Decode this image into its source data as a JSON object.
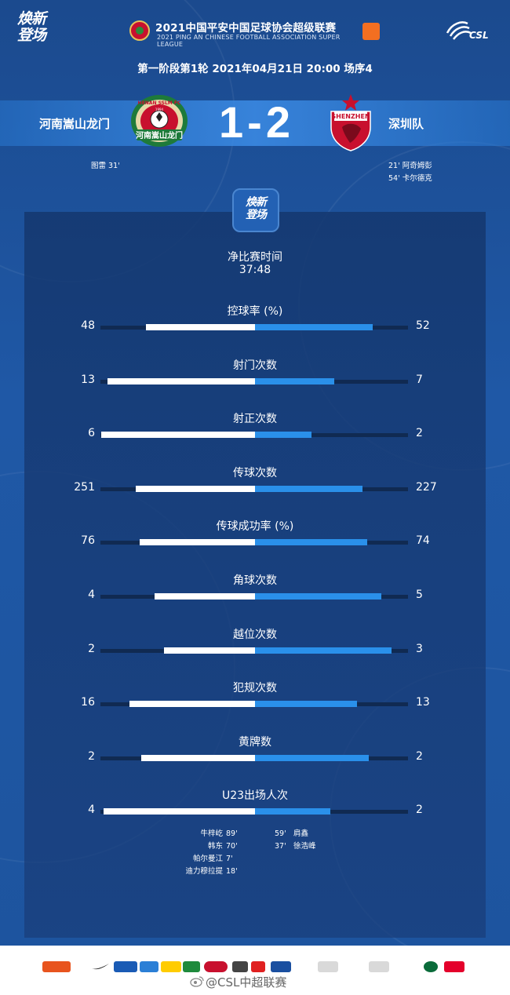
{
  "header": {
    "slogan": "焕新\n登场",
    "league_title": "2021中国平安中国足球协会超级联赛",
    "league_subtitle": "2021 PING AN CHINESE FOOTBALL ASSOCIATION SUPER LEAGUE",
    "csl_logo_text": "CSL",
    "match_info": "第一阶段第1轮  2021年04月21日 20:00 场序4"
  },
  "match": {
    "home_team": "河南嵩山龙门",
    "away_team": "深圳队",
    "home_score": "1",
    "away_score": "2",
    "separator": "-",
    "home_crest_text": "HENAN SSLM FC",
    "home_crest_banner": "河南嵩山龙门",
    "home_crest_year": "1994",
    "away_crest_text": "SHENZHEN",
    "home_scorers": [
      {
        "name": "图雷",
        "minute": "31'"
      }
    ],
    "away_scorers": [
      {
        "minute": "21'",
        "name": "阿奇姆彭"
      },
      {
        "minute": "54'",
        "name": "卡尔德克"
      }
    ]
  },
  "panel": {
    "badge_text": "焕新\n登场",
    "net_time_label": "净比赛时间",
    "net_time_value": "37:48"
  },
  "stats": [
    {
      "label": "控球率 (%)",
      "home": "48",
      "away": "52",
      "home_share": 0.48,
      "away_share": 0.52
    },
    {
      "label": "射门次数",
      "home": "13",
      "away": "7",
      "home_share": 0.65,
      "away_share": 0.35
    },
    {
      "label": "射正次数",
      "home": "6",
      "away": "2",
      "home_share": 0.75,
      "away_share": 0.25
    },
    {
      "label": "传球次数",
      "home": "251",
      "away": "227",
      "home_share": 0.525,
      "away_share": 0.475
    },
    {
      "label": "传球成功率 (%)",
      "home": "76",
      "away": "74",
      "home_share": 0.507,
      "away_share": 0.493
    },
    {
      "label": "角球次数",
      "home": "4",
      "away": "5",
      "home_share": 0.444,
      "away_share": 0.556
    },
    {
      "label": "越位次数",
      "home": "2",
      "away": "3",
      "home_share": 0.4,
      "away_share": 0.6
    },
    {
      "label": "犯规次数",
      "home": "16",
      "away": "13",
      "home_share": 0.552,
      "away_share": 0.448
    },
    {
      "label": "黄牌数",
      "home": "2",
      "away": "2",
      "home_share": 0.5,
      "away_share": 0.5
    },
    {
      "label": "U23出场人次",
      "home": "4",
      "away": "2",
      "home_share": 0.667,
      "away_share": 0.333
    }
  ],
  "u23_players": {
    "home": [
      {
        "name": "牛梓屹",
        "minute": "89'"
      },
      {
        "name": "韩东",
        "minute": "70'"
      },
      {
        "name": "帕尔曼江",
        "minute": "7'"
      },
      {
        "name": "迪力穆拉提",
        "minute": "18'"
      }
    ],
    "away": [
      {
        "minute": "59'",
        "name": "肩鑫"
      },
      {
        "minute": "37'",
        "name": "徐浩峰"
      }
    ]
  },
  "footer": {
    "weibo_handle": "@CSL中超联赛"
  },
  "colors": {
    "background": "#1d4f96",
    "home_bar": "#ffffff",
    "away_bar": "#2a90ea",
    "track": "#102a52"
  }
}
